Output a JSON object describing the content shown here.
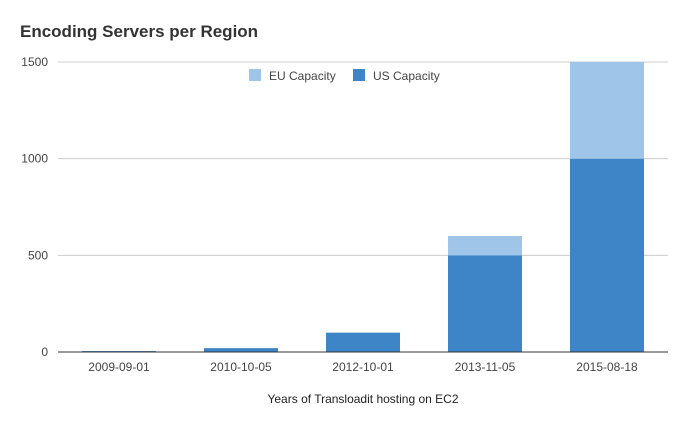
{
  "chart_data": {
    "type": "bar",
    "stacked": true,
    "title": "Encoding Servers per Region",
    "xlabel": "Years of Transloadit hosting on EC2",
    "ylabel": "",
    "ylim": [
      0,
      1500
    ],
    "yticks": [
      0,
      500,
      1000,
      1500
    ],
    "grid": true,
    "legend_position": "top",
    "categories": [
      "2009-09-01",
      "2010-10-05",
      "2012-10-01",
      "2013-11-05",
      "2015-08-18"
    ],
    "series": [
      {
        "name": "US Capacity",
        "color": "#3d85c6",
        "values": [
          5,
          20,
          100,
          500,
          1000
        ]
      },
      {
        "name": "EU Capacity",
        "color": "#9fc5e8",
        "values": [
          0,
          0,
          0,
          100,
          500
        ]
      }
    ]
  }
}
